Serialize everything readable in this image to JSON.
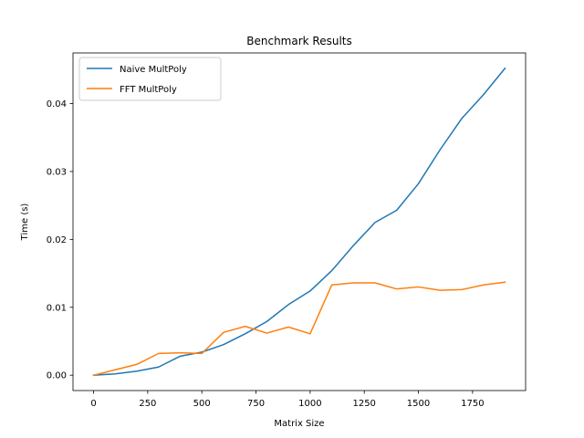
{
  "chart_data": {
    "type": "line",
    "title": "Benchmark Results",
    "xlabel": "Matrix Size",
    "ylabel": "Time (s)",
    "x": [
      0,
      100,
      200,
      300,
      400,
      500,
      600,
      700,
      800,
      900,
      1000,
      1100,
      1200,
      1300,
      1400,
      1500,
      1600,
      1700,
      1800,
      1900
    ],
    "series": [
      {
        "name": "Naive MultPoly",
        "color": "#1f77b4",
        "values": [
          0.0,
          0.0002,
          0.0006,
          0.0012,
          0.0028,
          0.0034,
          0.0045,
          0.0061,
          0.0079,
          0.0104,
          0.0124,
          0.0154,
          0.0191,
          0.0225,
          0.0243,
          0.0282,
          0.0332,
          0.0378,
          0.0413,
          0.0452
        ]
      },
      {
        "name": "FFT MultPoly",
        "color": "#ff7f0e",
        "values": [
          0.0,
          0.0008,
          0.0016,
          0.0032,
          0.0033,
          0.0032,
          0.0063,
          0.0072,
          0.0062,
          0.0071,
          0.0061,
          0.0133,
          0.0136,
          0.0136,
          0.0127,
          0.013,
          0.0125,
          0.0126,
          0.0133,
          0.0137
        ]
      }
    ],
    "xlim": [
      -95,
      1995
    ],
    "ylim": [
      -0.00226,
      0.04746
    ],
    "xticks": [
      0,
      250,
      500,
      750,
      1000,
      1250,
      1500,
      1750
    ],
    "xtick_labels": [
      "0",
      "250",
      "500",
      "750",
      "1000",
      "1250",
      "1500",
      "1750"
    ],
    "yticks": [
      0.0,
      0.01,
      0.02,
      0.03,
      0.04
    ],
    "ytick_labels": [
      "0.00",
      "0.01",
      "0.02",
      "0.03",
      "0.04"
    ],
    "grid": false,
    "legend_position": "top-left"
  }
}
